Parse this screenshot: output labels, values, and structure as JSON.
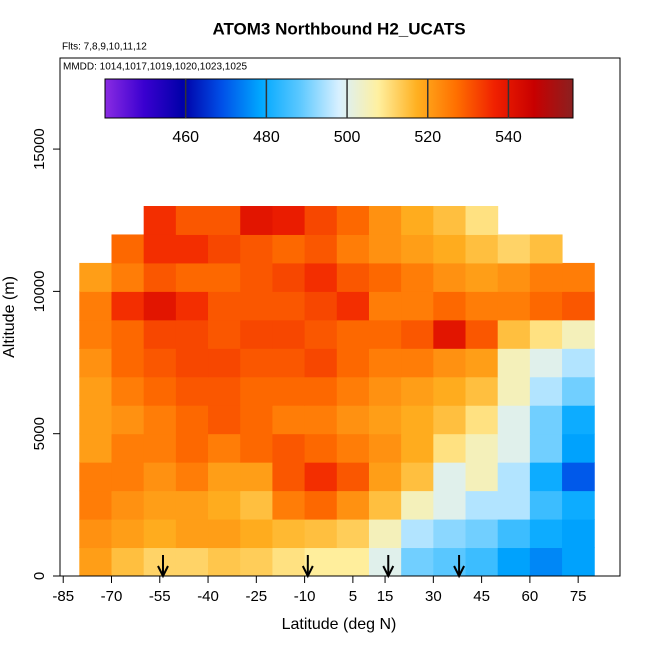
{
  "chart_data": {
    "type": "heatmap",
    "title": "ATOM3 Northbound H2_UCATS",
    "subtitle": "Flts: 7,8,9,10,11,12",
    "annotation": "MMDD: 1014,1017,1019,1020,1023,1025",
    "x_label": "Latitude (deg N)",
    "y_label": "Altitude (m)",
    "xlim": [
      -86,
      88
    ],
    "xticks": [
      -85,
      -70,
      -55,
      -40,
      -25,
      -10,
      5,
      15,
      30,
      45,
      60,
      75
    ],
    "ylim": [
      0,
      18200
    ],
    "yticks": [
      0,
      5000,
      10000,
      15000
    ],
    "x_bins": [
      -80,
      -70,
      -60,
      -50,
      -40,
      -30,
      -20,
      -10,
      0,
      10,
      20,
      30,
      40,
      50,
      60,
      70,
      80
    ],
    "y_bins": [
      0,
      1000,
      2000,
      3000,
      4000,
      5000,
      6000,
      7000,
      8000,
      9000,
      10000,
      11000,
      12000,
      13000
    ],
    "z": [
      [
        520,
        515,
        512,
        512,
        514,
        513,
        510,
        508,
        508,
        500,
        490,
        488,
        485,
        478,
        475,
        478
      ],
      [
        522,
        520,
        518,
        520,
        520,
        518,
        516,
        515,
        513,
        505,
        495,
        492,
        490,
        485,
        480,
        478
      ],
      [
        525,
        522,
        520,
        520,
        518,
        515,
        525,
        528,
        522,
        515,
        505,
        500,
        495,
        495,
        485,
        480
      ],
      [
        525,
        525,
        522,
        525,
        520,
        520,
        530,
        535,
        530,
        520,
        515,
        500,
        505,
        495,
        480,
        470
      ],
      [
        520,
        525,
        525,
        528,
        525,
        528,
        530,
        528,
        525,
        522,
        518,
        510,
        505,
        500,
        490,
        478
      ],
      [
        520,
        522,
        525,
        528,
        530,
        528,
        525,
        525,
        522,
        520,
        518,
        515,
        510,
        500,
        490,
        480
      ],
      [
        520,
        525,
        528,
        530,
        530,
        528,
        528,
        528,
        525,
        522,
        520,
        518,
        515,
        505,
        495,
        490
      ],
      [
        522,
        528,
        530,
        532,
        532,
        530,
        530,
        532,
        528,
        525,
        525,
        522,
        520,
        505,
        500,
        495
      ],
      [
        525,
        528,
        532,
        532,
        530,
        532,
        532,
        530,
        528,
        528,
        530,
        540,
        530,
        515,
        510,
        505
      ],
      [
        525,
        535,
        540,
        535,
        530,
        530,
        530,
        532,
        535,
        525,
        525,
        528,
        525,
        525,
        528,
        530
      ],
      [
        520,
        525,
        530,
        528,
        528,
        530,
        532,
        535,
        530,
        528,
        525,
        522,
        520,
        522,
        525,
        525
      ],
      [
        null,
        528,
        535,
        535,
        532,
        530,
        528,
        530,
        525,
        522,
        520,
        518,
        515,
        512,
        515,
        null
      ],
      [
        null,
        null,
        535,
        530,
        530,
        540,
        538,
        532,
        528,
        522,
        518,
        515,
        510,
        null,
        null,
        null
      ]
    ],
    "clim": [
      440,
      556
    ],
    "colorbar_ticks": [
      460,
      480,
      500,
      520,
      540
    ],
    "colors": [
      "#8a2be2",
      "#3a00d0",
      "#0000a8",
      "#0050e8",
      "#00a8ff",
      "#5cc8ff",
      "#d8f0ff",
      "#fff0a0",
      "#ffb020",
      "#ff7000",
      "#f02000",
      "#c80000",
      "#8b2020"
    ],
    "arrow_x": [
      -54,
      -9,
      16,
      38
    ]
  }
}
